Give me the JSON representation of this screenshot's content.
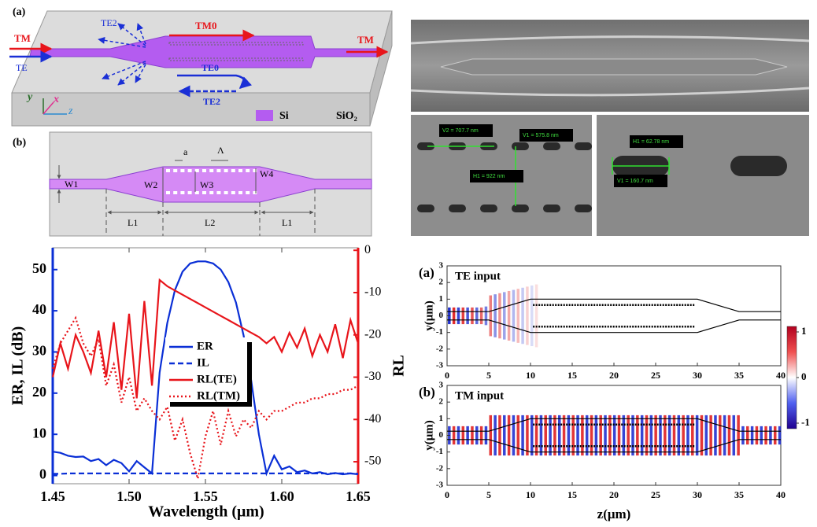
{
  "schematic_a": {
    "label": "(a)",
    "te2_top": "TE2",
    "tm0": "TM0",
    "tm_in": "TM",
    "tm_out": "TM",
    "te_in": "TE",
    "te0": "TE0",
    "te2_bottom": "TE2",
    "axis_y": "y",
    "axis_x": "x",
    "axis_z": "z",
    "legend": [
      "Si",
      "SiO₂"
    ]
  },
  "schematic_b": {
    "label": "(b)",
    "dim_a": "a",
    "dim_period": "Λ",
    "w1": "W1",
    "w2": "W2",
    "w3": "W3",
    "w4": "W4",
    "l1_left": "L1",
    "l2": "L2",
    "l1_right": "L1"
  },
  "sem": {
    "annotations": [
      "V2 = 707.7 nm",
      "V1 = 575.8 nm",
      "H1 = 922 nm",
      "H1 = 62.78 nm",
      "V1 = 160.7 nm"
    ]
  },
  "chart_data": {
    "type": "line",
    "xlabel": "Wavelength (μm)",
    "ylabel": "ER, IL (dB)",
    "y2label": "RL",
    "x": [
      1.45,
      1.455,
      1.46,
      1.465,
      1.47,
      1.475,
      1.48,
      1.485,
      1.49,
      1.495,
      1.5,
      1.505,
      1.51,
      1.515,
      1.52,
      1.525,
      1.53,
      1.535,
      1.54,
      1.545,
      1.55,
      1.555,
      1.56,
      1.565,
      1.57,
      1.575,
      1.58,
      1.585,
      1.59,
      1.595,
      1.6,
      1.605,
      1.61,
      1.615,
      1.62,
      1.625,
      1.63,
      1.635,
      1.64,
      1.645,
      1.65
    ],
    "series": [
      {
        "name": "ER",
        "color": "#0a2fd6",
        "style": "solid",
        "axis": "y",
        "values": [
          5.8,
          5.5,
          4.8,
          4.5,
          4.6,
          3.5,
          4.0,
          2.5,
          3.8,
          3.0,
          1.0,
          3.5,
          2.0,
          0.5,
          25,
          37,
          45,
          49.5,
          51.5,
          52,
          52,
          51.5,
          50,
          47,
          42,
          34,
          23,
          10,
          0.5,
          4.8,
          1.5,
          2.2,
          0.8,
          1.2,
          0.5,
          0.8,
          0.3,
          0.6,
          0.3,
          0.5,
          0.3
        ]
      },
      {
        "name": "IL",
        "color": "#0a2fd6",
        "style": "dashed",
        "axis": "y",
        "values": [
          0.4,
          0.4,
          0.5,
          0.5,
          0.5,
          0.5,
          0.5,
          0.5,
          0.5,
          0.5,
          0.5,
          0.5,
          0.5,
          0.5,
          0.5,
          0.5,
          0.5,
          0.5,
          0.5,
          0.5,
          0.5,
          0.5,
          0.5,
          0.5,
          0.5,
          0.5,
          0.5,
          0.5,
          0.5,
          0.5,
          0.5,
          0.5,
          0.5,
          0.5,
          0.5,
          0.5,
          0.5,
          0.5,
          0.5,
          0.5,
          0.4
        ]
      },
      {
        "name": "RL(TE)",
        "color": "#e8151b",
        "style": "solid",
        "axis": "y2",
        "values": [
          -30,
          -22,
          -28,
          -20,
          -24,
          -29,
          -19,
          -30,
          -17,
          -33,
          -15,
          -35,
          -12,
          -32,
          -7,
          -8.5,
          -9.5,
          -10.5,
          -11.5,
          -12.5,
          -13.5,
          -14.5,
          -15.5,
          -16.5,
          -17.5,
          -18.5,
          -19.5,
          -20.5,
          -22,
          -20.5,
          -24,
          -19.5,
          -23,
          -18.5,
          -25,
          -20,
          -24,
          -17.5,
          -25.5,
          -16.5,
          -22
        ]
      },
      {
        "name": "RL(TM)",
        "color": "#e8151b",
        "style": "dotted",
        "axis": "y2",
        "values": [
          -28,
          -22,
          -19,
          -16,
          -22,
          -25,
          -21,
          -32,
          -27,
          -36,
          -30,
          -38,
          -35,
          -38,
          -40,
          -37,
          -45,
          -40,
          -48,
          -54,
          -44,
          -38,
          -46,
          -38,
          -44,
          -40,
          -42,
          -38,
          -40,
          -38,
          -38,
          -37,
          -36,
          -36,
          -35,
          -35,
          -34,
          -34,
          -33,
          -33,
          -32
        ]
      }
    ],
    "xlim": [
      1.45,
      1.65
    ],
    "xticks": [
      1.45,
      {
        "value": 1.5,
        "label": "1.50"
      },
      1.55,
      {
        "value": 1.6,
        "label": "1.60"
      },
      1.65
    ],
    "ylim": [
      -2,
      55.3
    ],
    "yticks": [
      0,
      10,
      20,
      30,
      40,
      50
    ],
    "y2lim": [
      -55.2,
      0.6
    ],
    "y2ticks": [
      0,
      -10,
      -20,
      -30,
      -40,
      -50
    ]
  },
  "field_maps": {
    "panels": [
      {
        "label": "(a)",
        "title": "TE input"
      },
      {
        "label": "(b)",
        "title": "TM input"
      }
    ],
    "xlabel": "z(μm)",
    "ylabel": "y(μm)",
    "xlim": [
      0,
      40
    ],
    "ylim": [
      -3,
      3
    ],
    "xticks": [
      0,
      5,
      10,
      15,
      20,
      25,
      30,
      35,
      40
    ],
    "yticks": [
      -3,
      -2,
      -1,
      0,
      1,
      2,
      3
    ],
    "colorbar_ticks": [
      1,
      0,
      -1
    ]
  }
}
